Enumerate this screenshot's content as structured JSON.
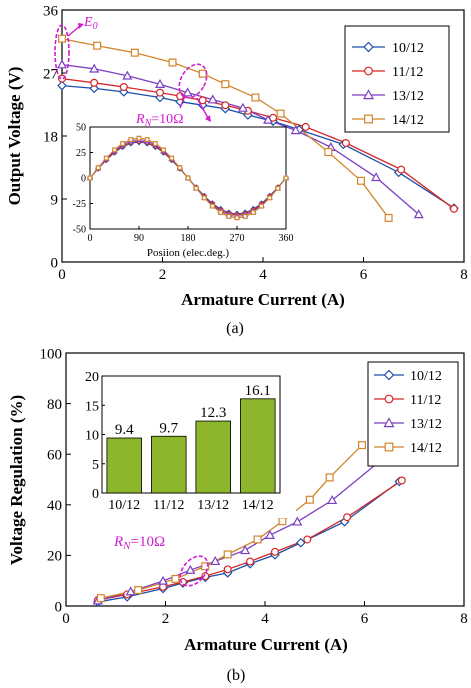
{
  "colors": {
    "10/12": "#1f4fa8",
    "11/12": "#d62728",
    "13/12": "#7b3fc4",
    "14/12": "#d2852a",
    "bar": "#8db62c",
    "annotation": "#d11cd1"
  },
  "markers": {
    "10/12": "diamond",
    "11/12": "circle",
    "13/12": "triangle",
    "14/12": "square"
  },
  "chart_data": [
    {
      "type": "line",
      "caption": "(a)",
      "xlabel": "Armature Current (A)",
      "ylabel": "Output Voltage (V)",
      "xlim": [
        0,
        8
      ],
      "ylim": [
        0,
        36
      ],
      "xticks": [
        "0",
        "2",
        "4",
        "6",
        "8"
      ],
      "yticks": [
        "0",
        "9",
        "18",
        "27",
        "36"
      ],
      "legend": "top-right",
      "annotations": {
        "e0": "E",
        "e0_sub": "0",
        "rn": "R",
        "rn_sub": "N",
        "rn_val": "=10Ω"
      },
      "series": [
        {
          "name": "10/12",
          "x": [
            0,
            0.64,
            1.23,
            1.95,
            2.35,
            2.8,
            3.25,
            3.7,
            4.2,
            4.72,
            5.6,
            6.7,
            7.8
          ],
          "y": [
            25.2,
            24.8,
            24.3,
            23.5,
            22.9,
            22.4,
            21.9,
            21.0,
            20.1,
            18.9,
            16.8,
            12.8,
            7.7
          ]
        },
        {
          "name": "11/12",
          "x": [
            0,
            0.64,
            1.23,
            1.95,
            2.35,
            2.8,
            3.25,
            3.7,
            4.2,
            4.85,
            5.65,
            6.75,
            7.8
          ],
          "y": [
            26.2,
            25.6,
            25.0,
            24.2,
            23.7,
            23.1,
            22.4,
            21.6,
            20.6,
            19.3,
            17.0,
            13.2,
            7.6
          ]
        },
        {
          "name": "13/12",
          "x": [
            0,
            0.64,
            1.3,
            1.95,
            2.5,
            3.0,
            3.6,
            4.1,
            4.65,
            5.35,
            6.25,
            7.1
          ],
          "y": [
            28.2,
            27.6,
            26.6,
            25.4,
            24.2,
            23.2,
            22.0,
            20.3,
            18.8,
            16.4,
            12.1,
            6.8
          ]
        },
        {
          "name": "14/12",
          "x": [
            0,
            0.7,
            1.45,
            2.2,
            2.8,
            3.25,
            3.85,
            4.35,
            5.3,
            5.95,
            6.5
          ],
          "y": [
            31.9,
            30.9,
            29.9,
            28.5,
            26.9,
            25.4,
            23.5,
            21.2,
            15.7,
            11.6,
            6.3
          ]
        }
      ]
    },
    {
      "type": "line",
      "inset_of": "(a)",
      "xlabel": "Posiion (elec.deg.)",
      "xlim": [
        0,
        360
      ],
      "ylim": [
        -50,
        50
      ],
      "xticks": [
        "0",
        "90",
        "180",
        "270",
        "360"
      ],
      "yticks": [
        "-50",
        "-25",
        "0",
        "25",
        "50"
      ],
      "series": [
        {
          "name": "10/12",
          "x": [
            0,
            15,
            30,
            45,
            60,
            75,
            90,
            105,
            120,
            135,
            150,
            165,
            180,
            195,
            210,
            225,
            240,
            255,
            270,
            285,
            300,
            315,
            330,
            345,
            360
          ],
          "amplitude": 35
        },
        {
          "name": "11/12",
          "amplitude": 36
        },
        {
          "name": "13/12",
          "amplitude": 37.5
        },
        {
          "name": "14/12",
          "amplitude": 39
        }
      ]
    },
    {
      "type": "line",
      "caption": "(b)",
      "xlabel": "Armature Current (A)",
      "ylabel": "Voltage Regulation (%)",
      "xlim": [
        0,
        8
      ],
      "ylim": [
        0,
        100
      ],
      "xticks": [
        "0",
        "2",
        "4",
        "6",
        "8"
      ],
      "yticks": [
        "0",
        "20",
        "40",
        "60",
        "80",
        "100"
      ],
      "legend": "top-right",
      "annotations": {
        "rn": "R",
        "rn_sub": "N",
        "rn_val": "=10Ω"
      },
      "series": [
        {
          "name": "10/12",
          "x": [
            0.64,
            1.23,
            1.95,
            2.35,
            2.8,
            3.25,
            3.7,
            4.2,
            4.72,
            5.6,
            6.7
          ],
          "y": [
            1.6,
            3.6,
            6.9,
            9.1,
            11.3,
            13.1,
            16.7,
            20.2,
            25.0,
            33.3,
            49.2
          ]
        },
        {
          "name": "11/12",
          "x": [
            0.64,
            1.23,
            1.95,
            2.35,
            2.8,
            3.25,
            3.7,
            4.2,
            4.85,
            5.65,
            6.75
          ],
          "y": [
            2.3,
            4.6,
            7.6,
            9.5,
            11.8,
            14.5,
            17.6,
            21.4,
            26.3,
            35.1,
            49.6
          ]
        },
        {
          "name": "13/12",
          "x": [
            0.64,
            1.3,
            1.95,
            2.5,
            3.0,
            3.6,
            4.1,
            4.65,
            5.35,
            6.3
          ],
          "y": [
            2.1,
            5.7,
            9.9,
            14.2,
            17.7,
            22.0,
            28.0,
            33.3,
            41.8,
            57.1
          ]
        },
        {
          "name": "14/12",
          "x": [
            0.7,
            1.45,
            2.2,
            2.8,
            3.25,
            3.85,
            4.35,
            4.9,
            5.3,
            5.95
          ],
          "y": [
            3.1,
            6.3,
            10.7,
            15.7,
            20.4,
            26.3,
            33.5,
            42.0,
            50.8,
            63.6
          ]
        }
      ]
    },
    {
      "type": "bar",
      "inset_of": "(b)",
      "categories": [
        "10/12",
        "11/12",
        "13/12",
        "14/12"
      ],
      "values": [
        9.4,
        9.7,
        12.3,
        16.1
      ],
      "labels": [
        "9.4",
        "9.7",
        "12.3",
        "16.1"
      ],
      "ylim": [
        0,
        20
      ],
      "yticks": [
        "0",
        "5",
        "10",
        "15",
        "20"
      ]
    }
  ]
}
